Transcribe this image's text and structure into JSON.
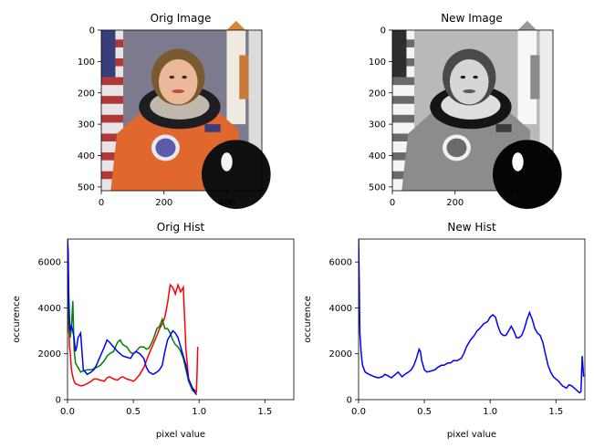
{
  "figure": {
    "background": "#ffffff"
  },
  "chart_data": [
    {
      "type": "image",
      "title": "Orig Image",
      "xticks": [
        0,
        200,
        400
      ],
      "yticks": [
        0,
        100,
        200,
        300,
        400,
        500
      ],
      "xlim": [
        0,
        512
      ],
      "ylim": [
        512,
        0
      ],
      "image_description_colors": [
        "#e0672e",
        "#1c1c22",
        "#f2f2f2",
        "#b83a3a",
        "#3b3f8a"
      ]
    },
    {
      "type": "image",
      "title": "New Image",
      "xticks": [
        0,
        200,
        400
      ],
      "yticks": [
        0,
        100,
        200,
        300,
        400,
        500
      ],
      "xlim": [
        0,
        512
      ],
      "ylim": [
        512,
        0
      ],
      "grayscale": true
    },
    {
      "type": "line",
      "title": "Orig Hist",
      "xlabel": "pixel value",
      "ylabel": "occurence",
      "xlim": [
        0,
        1.72
      ],
      "ylim": [
        0,
        7000
      ],
      "xticks": [
        "0.0",
        "0.5",
        "1.0",
        "1.5"
      ],
      "yticks": [
        "0",
        "2000",
        "4000",
        "6000"
      ],
      "series": [
        {
          "color": "#ff0000",
          "x": [
            0.0,
            0.005,
            0.01,
            0.015,
            0.02,
            0.03,
            0.04,
            0.05,
            0.06,
            0.08,
            0.1,
            0.12,
            0.15,
            0.18,
            0.2,
            0.22,
            0.25,
            0.28,
            0.3,
            0.32,
            0.35,
            0.38,
            0.4,
            0.42,
            0.45,
            0.48,
            0.5,
            0.52,
            0.55,
            0.58,
            0.6,
            0.62,
            0.65,
            0.68,
            0.7,
            0.72,
            0.74,
            0.76,
            0.78,
            0.8,
            0.82,
            0.84,
            0.86,
            0.88,
            0.9,
            0.92,
            0.95,
            0.97,
            0.98,
            0.985,
            0.99
          ],
          "y": [
            2900,
            5500,
            3500,
            2300,
            2100,
            1300,
            1000,
            800,
            700,
            650,
            600,
            620,
            700,
            800,
            900,
            900,
            850,
            800,
            950,
            1000,
            900,
            850,
            950,
            1000,
            900,
            850,
            800,
            900,
            1100,
            1400,
            1700,
            2000,
            2400,
            2800,
            3100,
            3300,
            3600,
            4200,
            5000,
            4900,
            4600,
            5000,
            4700,
            4900,
            2200,
            900,
            500,
            400,
            350,
            1200,
            2300
          ]
        },
        {
          "color": "#008000",
          "x": [
            0.0,
            0.005,
            0.01,
            0.015,
            0.02,
            0.03,
            0.04,
            0.05,
            0.06,
            0.08,
            0.1,
            0.12,
            0.15,
            0.18,
            0.2,
            0.22,
            0.25,
            0.28,
            0.3,
            0.32,
            0.35,
            0.38,
            0.4,
            0.42,
            0.45,
            0.48,
            0.5,
            0.52,
            0.55,
            0.58,
            0.6,
            0.62,
            0.65,
            0.68,
            0.7,
            0.72,
            0.74,
            0.76,
            0.78,
            0.8,
            0.82,
            0.84,
            0.86,
            0.88,
            0.9,
            0.92,
            0.95,
            0.97,
            0.98
          ],
          "y": [
            3200,
            5000,
            3800,
            3000,
            2700,
            3100,
            4300,
            2200,
            1600,
            1400,
            1200,
            1250,
            1300,
            1300,
            1350,
            1400,
            1500,
            1700,
            1900,
            2000,
            2100,
            2500,
            2600,
            2400,
            2300,
            2050,
            2000,
            2100,
            2300,
            2300,
            2200,
            2250,
            2600,
            3100,
            3200,
            3500,
            3100,
            3100,
            2900,
            2600,
            2400,
            2300,
            2100,
            1800,
            1300,
            800,
            400,
            300,
            200
          ]
        },
        {
          "color": "#0000ff",
          "x": [
            0.0,
            0.005,
            0.01,
            0.015,
            0.02,
            0.03,
            0.04,
            0.05,
            0.06,
            0.07,
            0.08,
            0.09,
            0.1,
            0.12,
            0.15,
            0.18,
            0.2,
            0.22,
            0.25,
            0.28,
            0.3,
            0.32,
            0.35,
            0.38,
            0.4,
            0.42,
            0.45,
            0.48,
            0.5,
            0.52,
            0.55,
            0.58,
            0.6,
            0.62,
            0.65,
            0.68,
            0.7,
            0.72,
            0.74,
            0.76,
            0.78,
            0.8,
            0.82,
            0.84,
            0.86,
            0.88,
            0.9,
            0.92,
            0.95,
            0.97,
            0.98
          ],
          "y": [
            7000,
            6500,
            4500,
            3500,
            3000,
            3200,
            3000,
            2700,
            2100,
            2300,
            2700,
            2800,
            2900,
            1300,
            1100,
            1200,
            1300,
            1500,
            1900,
            2300,
            2600,
            2500,
            2300,
            2100,
            2000,
            1900,
            1850,
            1800,
            2000,
            2100,
            2000,
            1800,
            1400,
            1200,
            1100,
            1200,
            1300,
            1500,
            2100,
            2600,
            2800,
            3000,
            2900,
            2700,
            2300,
            1900,
            1500,
            900,
            500,
            300,
            250
          ]
        }
      ]
    },
    {
      "type": "line",
      "title": "New Hist",
      "xlabel": "pixel value",
      "ylabel": "occurence",
      "xlim": [
        0,
        1.72
      ],
      "ylim": [
        0,
        7000
      ],
      "xticks": [
        "0.0",
        "0.5",
        "1.0",
        "1.5"
      ],
      "yticks": [
        "0",
        "2000",
        "4000",
        "6000"
      ],
      "series": [
        {
          "color": "#0000ff",
          "x": [
            0.0,
            0.005,
            0.01,
            0.02,
            0.03,
            0.05,
            0.08,
            0.1,
            0.12,
            0.15,
            0.18,
            0.2,
            0.22,
            0.25,
            0.28,
            0.3,
            0.33,
            0.35,
            0.38,
            0.4,
            0.42,
            0.44,
            0.46,
            0.47,
            0.48,
            0.5,
            0.52,
            0.55,
            0.58,
            0.6,
            0.63,
            0.65,
            0.68,
            0.7,
            0.72,
            0.75,
            0.78,
            0.8,
            0.82,
            0.85,
            0.88,
            0.9,
            0.92,
            0.95,
            0.98,
            1.0,
            1.02,
            1.04,
            1.06,
            1.08,
            1.1,
            1.12,
            1.14,
            1.16,
            1.18,
            1.2,
            1.22,
            1.24,
            1.26,
            1.28,
            1.3,
            1.32,
            1.34,
            1.36,
            1.38,
            1.4,
            1.42,
            1.44,
            1.46,
            1.48,
            1.5,
            1.52,
            1.55,
            1.58,
            1.6,
            1.62,
            1.64,
            1.66,
            1.68,
            1.69,
            1.7,
            1.71
          ],
          "y": [
            7000,
            5200,
            2900,
            2000,
            1500,
            1200,
            1100,
            1050,
            1000,
            950,
            1000,
            1100,
            1050,
            950,
            1100,
            1200,
            1000,
            1100,
            1200,
            1300,
            1500,
            1800,
            2200,
            2100,
            1700,
            1300,
            1200,
            1250,
            1300,
            1400,
            1500,
            1500,
            1600,
            1600,
            1700,
            1700,
            1800,
            2000,
            2300,
            2600,
            2800,
            3000,
            3100,
            3300,
            3400,
            3600,
            3700,
            3600,
            3200,
            2900,
            2800,
            2800,
            3000,
            3200,
            3000,
            2700,
            2700,
            2800,
            3100,
            3500,
            3800,
            3500,
            3100,
            2900,
            2800,
            2500,
            2000,
            1500,
            1200,
            1000,
            900,
            800,
            600,
            500,
            650,
            600,
            500,
            400,
            300,
            350,
            1900,
            1000
          ]
        }
      ]
    }
  ]
}
